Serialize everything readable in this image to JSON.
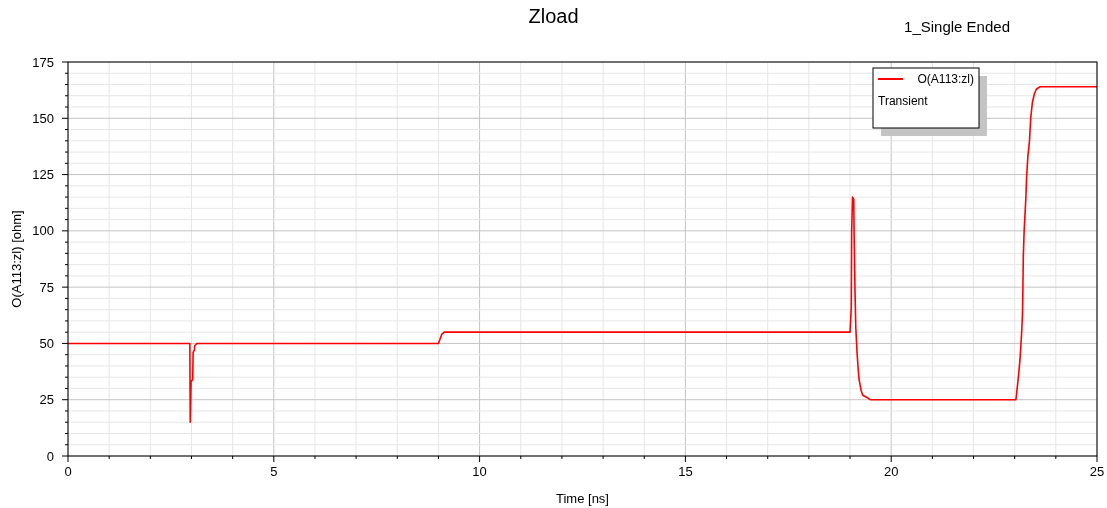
{
  "chart_data": {
    "type": "line",
    "title": "Zload",
    "xlabel": "Time [ns]",
    "ylabel": "O(A113:zl) [ohm]",
    "legend_title": "Transient",
    "annotations": [
      "1_Single Ended"
    ],
    "xlim": [
      0,
      25
    ],
    "ylim": [
      0,
      175
    ],
    "xticks": [
      0,
      {
        "value": 1,
        "label": null
      },
      {
        "value": 2,
        "label": null
      },
      {
        "value": 3,
        "label": null
      },
      {
        "value": 4,
        "label": null
      },
      5,
      {
        "value": 6,
        "label": null
      },
      {
        "value": 7,
        "label": null
      },
      {
        "value": 8,
        "label": null
      },
      {
        "value": 9,
        "label": null
      },
      10,
      {
        "value": 11,
        "label": null
      },
      {
        "value": 12,
        "label": null
      },
      {
        "value": 13,
        "label": null
      },
      {
        "value": 14,
        "label": null
      },
      15,
      {
        "value": 16,
        "label": null
      },
      {
        "value": 17,
        "label": null
      },
      {
        "value": 18,
        "label": null
      },
      {
        "value": 19,
        "label": null
      },
      20,
      {
        "value": 21,
        "label": null
      },
      {
        "value": 22,
        "label": null
      },
      {
        "value": 23,
        "label": null
      },
      {
        "value": 24,
        "label": null
      },
      25
    ],
    "yticks": [
      0,
      {
        "value": 5,
        "label": null
      },
      {
        "value": 10,
        "label": null
      },
      {
        "value": 15,
        "label": null
      },
      {
        "value": 20,
        "label": null
      },
      25,
      {
        "value": 30,
        "label": null
      },
      {
        "value": 35,
        "label": null
      },
      {
        "value": 40,
        "label": null
      },
      {
        "value": 45,
        "label": null
      },
      50,
      {
        "value": 55,
        "label": null
      },
      {
        "value": 60,
        "label": null
      },
      {
        "value": 65,
        "label": null
      },
      {
        "value": 70,
        "label": null
      },
      75,
      {
        "value": 80,
        "label": null
      },
      {
        "value": 85,
        "label": null
      },
      {
        "value": 90,
        "label": null
      },
      {
        "value": 95,
        "label": null
      },
      100,
      {
        "value": 105,
        "label": null
      },
      {
        "value": 110,
        "label": null
      },
      {
        "value": 115,
        "label": null
      },
      {
        "value": 120,
        "label": null
      },
      125,
      {
        "value": 130,
        "label": null
      },
      {
        "value": 135,
        "label": null
      },
      {
        "value": 140,
        "label": null
      },
      {
        "value": 145,
        "label": null
      },
      150,
      {
        "value": 155,
        "label": null
      },
      {
        "value": 160,
        "label": null
      },
      {
        "value": 165,
        "label": null
      },
      {
        "value": 170,
        "label": null
      },
      175
    ],
    "grid": true,
    "legend": "top right",
    "marker": "none",
    "line_style": "solid",
    "series": [
      {
        "name": "O(A113:zl)",
        "color": "#ff0000",
        "x": [
          0,
          2.96,
          2.97,
          2.99,
          3.03,
          3.04,
          3.07,
          3.08,
          3.13,
          9.0,
          9.04,
          9.08,
          9.14,
          19.0,
          19.03,
          19.04,
          19.06,
          19.09,
          19.1,
          19.12,
          19.14,
          19.17,
          19.2,
          19.22,
          19.27,
          19.31,
          19.41,
          19.49,
          23.03,
          23.09,
          23.13,
          23.17,
          23.19,
          23.2,
          23.21,
          23.23,
          23.27,
          23.29,
          23.32,
          23.36,
          23.39,
          23.43,
          23.48,
          23.53,
          23.62,
          23.74,
          25
        ],
        "values": [
          50,
          50,
          15,
          33,
          34,
          46,
          47,
          49,
          50,
          50,
          52,
          54,
          55,
          55,
          66,
          100,
          115,
          114,
          97,
          74,
          57,
          46,
          38,
          34,
          29,
          27,
          26,
          25,
          25,
          35,
          43,
          55,
          63,
          75,
          89,
          100,
          114,
          124,
          133,
          140,
          150,
          157,
          161,
          163,
          164,
          164,
          164
        ]
      }
    ]
  }
}
